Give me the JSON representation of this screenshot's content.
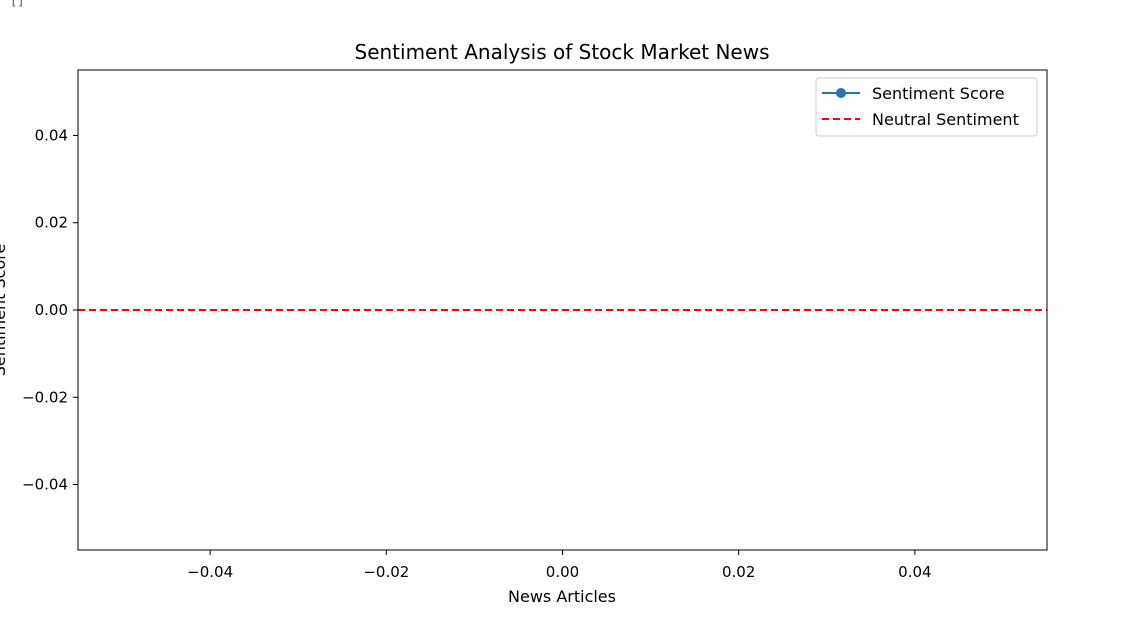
{
  "output_prompt": "[]",
  "chart_data": {
    "type": "line",
    "title": "Sentiment Analysis of Stock Market News",
    "xlabel": "News Articles",
    "ylabel": "Sentiment Score",
    "xlim": [
      -0.055,
      0.055
    ],
    "ylim": [
      -0.055,
      0.055
    ],
    "xticks": [
      -0.04,
      -0.02,
      0.0,
      0.02,
      0.04
    ],
    "yticks": [
      0.04,
      0.02,
      0.0,
      -0.02,
      -0.04
    ],
    "xtick_labels": [
      "−0.04",
      "−0.02",
      "0.00",
      "0.02",
      "0.04"
    ],
    "ytick_labels": [
      "0.04",
      "0.02",
      "0.00",
      "−0.02",
      "−0.04"
    ],
    "grid": false,
    "legend_position": "top-right",
    "series": [
      {
        "name": "Sentiment Score",
        "x": [],
        "y": [],
        "color": "#1f77b4",
        "style": "solid",
        "marker": "circle"
      }
    ],
    "reference_lines": [
      {
        "name": "Neutral Sentiment",
        "orientation": "horizontal",
        "y": 0,
        "color": "#ff0000",
        "style": "dashed"
      }
    ]
  }
}
